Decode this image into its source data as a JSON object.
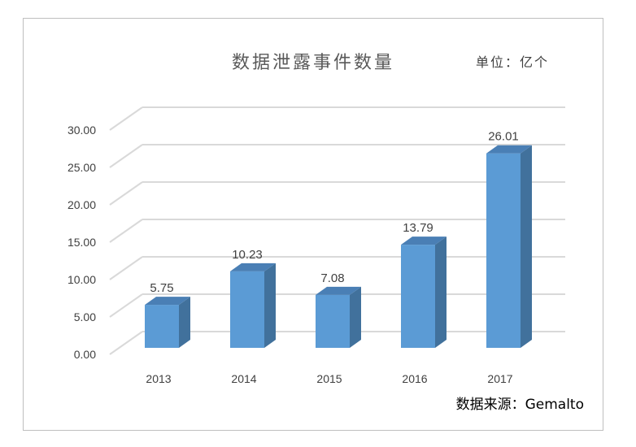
{
  "chart_data": {
    "type": "bar",
    "style": "3d-column",
    "title": "数据泄露事件数量",
    "unit_label": "单位：亿个",
    "source": "数据来源：Gemalto",
    "categories": [
      "2013",
      "2014",
      "2015",
      "2016",
      "2017"
    ],
    "values": [
      5.75,
      10.23,
      7.08,
      13.79,
      26.01
    ],
    "data_labels": [
      "5.75",
      "10.23",
      "7.08",
      "13.79",
      "26.01"
    ],
    "yticks": [
      "0.00",
      "5.00",
      "10.00",
      "15.00",
      "20.00",
      "25.00",
      "30.00"
    ],
    "ylim": [
      0,
      30
    ],
    "grid": true,
    "legend": "none",
    "colors": {
      "bar_front": "#5b9bd5",
      "bar_side": "#41719c",
      "bar_top": "#4a7fb5",
      "grid": "#d9d9d9"
    }
  }
}
